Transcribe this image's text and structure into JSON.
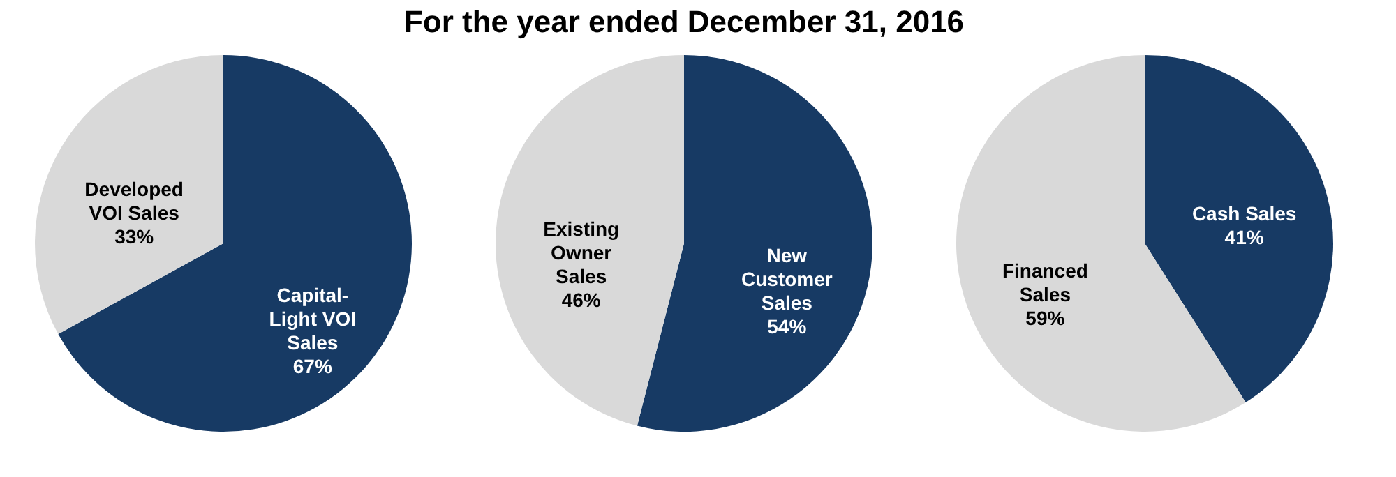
{
  "chart_data": [
    {
      "type": "pie",
      "categories": [
        "Capital-\nLight VOI\nSales",
        "Developed\nVOI Sales"
      ],
      "values": [
        67,
        33
      ],
      "colors": [
        "#173a64",
        "#d9d9d9"
      ],
      "value_labels": [
        "67%",
        "33%"
      ]
    },
    {
      "type": "pie",
      "title": "For the year ended December 31, 2016",
      "categories": [
        "New\nCustomer\nSales",
        "Existing\nOwner\nSales"
      ],
      "values": [
        54,
        46
      ],
      "colors": [
        "#173a64",
        "#d9d9d9"
      ],
      "value_labels": [
        "54%",
        "46%"
      ]
    },
    {
      "type": "pie",
      "categories": [
        "Cash Sales",
        "Financed\nSales"
      ],
      "values": [
        41,
        59
      ],
      "colors": [
        "#173a64",
        "#d9d9d9"
      ],
      "value_labels": [
        "41%",
        "59%"
      ]
    }
  ]
}
